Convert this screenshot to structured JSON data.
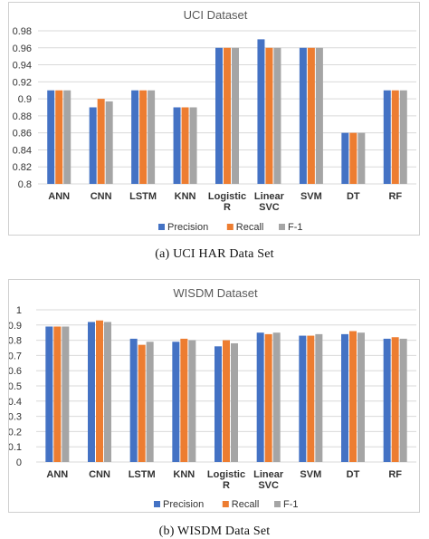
{
  "captions": {
    "a": "(a) UCI HAR Data Set",
    "b": "(b) WISDM Data Set"
  },
  "colors": {
    "Precision": "#4472c4",
    "Recall": "#ed7d31",
    "F-1": "#a5a5a5",
    "grid": "#d9d9d9"
  },
  "chart_data": [
    {
      "type": "bar",
      "title": "UCI Dataset",
      "xlabel": "",
      "ylabel": "",
      "categories": [
        "ANN",
        "CNN",
        "LSTM",
        "KNN",
        "Logistic R",
        "Linear SVC",
        "SVM",
        "DT",
        "RF"
      ],
      "series": [
        {
          "name": "Precision",
          "values": [
            0.91,
            0.89,
            0.91,
            0.89,
            0.96,
            0.97,
            0.96,
            0.86,
            0.91
          ]
        },
        {
          "name": "Recall",
          "values": [
            0.91,
            0.9,
            0.91,
            0.89,
            0.96,
            0.96,
            0.96,
            0.86,
            0.91
          ]
        },
        {
          "name": "F-1",
          "values": [
            0.91,
            0.897,
            0.91,
            0.89,
            0.96,
            0.96,
            0.96,
            0.86,
            0.91
          ]
        }
      ],
      "ylim": [
        0.8,
        0.98
      ],
      "yticks": [
        "0.8",
        "0.82",
        "0.84",
        "0.86",
        "0.88",
        "0.9",
        "0.92",
        "0.94",
        "0.96",
        "0.98"
      ],
      "grid": true,
      "legend_position": "bottom"
    },
    {
      "type": "bar",
      "title": "WISDM Dataset",
      "xlabel": "",
      "ylabel": "",
      "categories": [
        "ANN",
        "CNN",
        "LSTM",
        "KNN",
        "Logistic R",
        "Linear SVC",
        "SVM",
        "DT",
        "RF"
      ],
      "series": [
        {
          "name": "Precision",
          "values": [
            0.89,
            0.92,
            0.81,
            0.79,
            0.76,
            0.85,
            0.83,
            0.84,
            0.81
          ]
        },
        {
          "name": "Recall",
          "values": [
            0.89,
            0.93,
            0.77,
            0.81,
            0.8,
            0.84,
            0.83,
            0.86,
            0.82
          ]
        },
        {
          "name": "F-1",
          "values": [
            0.89,
            0.92,
            0.79,
            0.8,
            0.78,
            0.85,
            0.84,
            0.85,
            0.81
          ]
        }
      ],
      "ylim": [
        0,
        1
      ],
      "yticks": [
        "0",
        "0.1",
        "0.2",
        "0.3",
        "0.4",
        "0.5",
        "0.6",
        "0.7",
        "0.8",
        "0.9",
        "1"
      ],
      "grid": true,
      "legend_position": "bottom"
    }
  ]
}
